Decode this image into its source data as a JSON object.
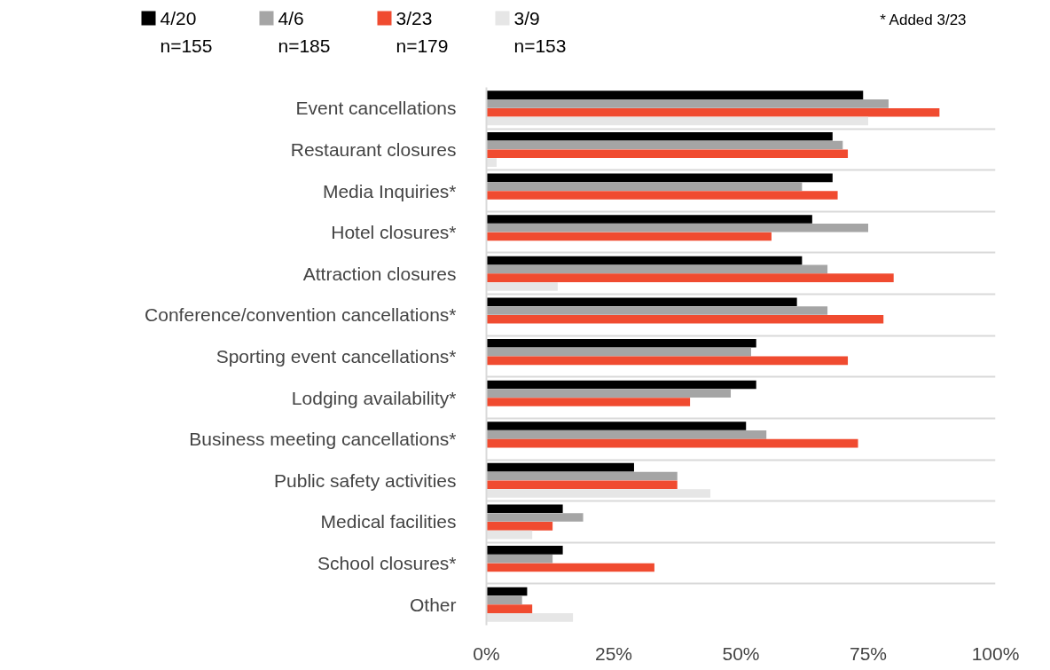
{
  "chart_data": {
    "type": "bar",
    "orientation": "horizontal",
    "categories": [
      "Event cancellations",
      "Restaurant closures",
      "Media Inquiries*",
      "Hotel closures*",
      "Attraction closures",
      "Conference/convention cancellations*",
      "Sporting event cancellations*",
      "Lodging availability*",
      "Business meeting cancellations*",
      "Public safety activities",
      "Medical facilities",
      "School closures*",
      "Other"
    ],
    "series": [
      {
        "name": "4/20\nn=155",
        "color": "#000000",
        "values": [
          74,
          68,
          68,
          64,
          62,
          61,
          53,
          53,
          51,
          29,
          15,
          15,
          8
        ]
      },
      {
        "name": "4/6\nn=185",
        "color": "#a5a5a5",
        "values": [
          79,
          70,
          62,
          75,
          67,
          67,
          52,
          48,
          55,
          37.5,
          19,
          13,
          7
        ]
      },
      {
        "name": "3/23\nn=179",
        "color": "#f04b30",
        "values": [
          89,
          71,
          69,
          56,
          80,
          78,
          71,
          40,
          73,
          37.5,
          13,
          33,
          9
        ]
      },
      {
        "name": "3/9\nn=153",
        "color": "#e6e6e6",
        "values": [
          75,
          2,
          null,
          null,
          14,
          null,
          null,
          null,
          null,
          44,
          9,
          null,
          17
        ]
      }
    ],
    "xlim": [
      0,
      100
    ],
    "xticks": [
      {
        "value": 0,
        "label": "0%"
      },
      {
        "value": 25,
        "label": "25%"
      },
      {
        "value": 50,
        "label": "50%"
      },
      {
        "value": 75,
        "label": "75%"
      },
      {
        "value": 100,
        "label": "100%"
      }
    ],
    "grid": "y",
    "legend": "top",
    "annotations": [
      "* Added 3/23"
    ]
  }
}
